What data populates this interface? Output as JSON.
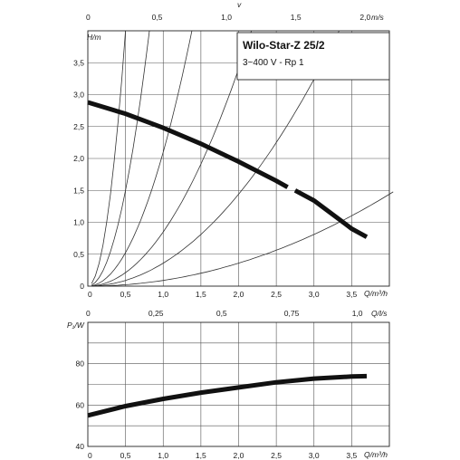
{
  "chart_data": [
    {
      "type": "line",
      "title": "Wilo-Star-Z 25/2",
      "subtitle": "3~400 V - Rp 1",
      "ylabel": "H/m",
      "xlabel": "Q/m³/h",
      "top_axis_label": "v",
      "top_axis_unit": "m/s",
      "xlim": [
        0,
        4.0
      ],
      "ylim": [
        0,
        4.0
      ],
      "x_ticks": [
        "0",
        "0,5",
        "1,0",
        "1,5",
        "2,0",
        "2,5",
        "3,0",
        "3,5"
      ],
      "y_ticks": [
        "0",
        "0,5",
        "1,0",
        "1,5",
        "2,0",
        "2,5",
        "3,0",
        "3,5"
      ],
      "top_ticks": [
        "0",
        "0,5",
        "1,0",
        "1,5",
        "2,0"
      ],
      "top_tick_values_q": [
        0,
        0.92,
        1.84,
        2.76,
        3.68
      ],
      "grid": true,
      "series": [
        {
          "x": [
            0.0,
            0.5,
            1.0,
            1.5,
            2.0,
            2.5,
            2.65,
            2.75,
            3.0,
            3.25,
            3.5,
            3.7
          ],
          "y": [
            2.88,
            2.7,
            2.48,
            2.23,
            1.95,
            1.65,
            1.55,
            1.5,
            1.34,
            1.12,
            0.9,
            0.77
          ],
          "gap_after_index": 6
        }
      ],
      "system_curves_k": [
        16.0,
        6.0,
        2.1,
        0.85,
        0.36,
        0.09
      ]
    },
    {
      "type": "line",
      "ylabel": "P₁/W",
      "xlabel": "Q/m³/h",
      "top_axis_unit": "Q/l/s",
      "xlim": [
        0,
        4.0
      ],
      "ylim": [
        40,
        100
      ],
      "x_ticks": [
        "0",
        "0,5",
        "1,0",
        "1,5",
        "2,0",
        "2,5",
        "3,0",
        "3,5"
      ],
      "y_ticks": [
        "40",
        "60",
        "80"
      ],
      "top_ticks": [
        "0",
        "0,25",
        "0,5",
        "0,75",
        "1,0"
      ],
      "top_tick_values_q": [
        0,
        0.9,
        1.8,
        2.7,
        3.6
      ],
      "grid": true,
      "series": [
        {
          "x": [
            0.0,
            0.5,
            1.0,
            1.5,
            2.0,
            2.5,
            3.0,
            3.5,
            3.7
          ],
          "y": [
            55.0,
            59.5,
            63.0,
            66.0,
            68.5,
            71.0,
            72.8,
            73.8,
            74.0
          ]
        }
      ]
    }
  ]
}
